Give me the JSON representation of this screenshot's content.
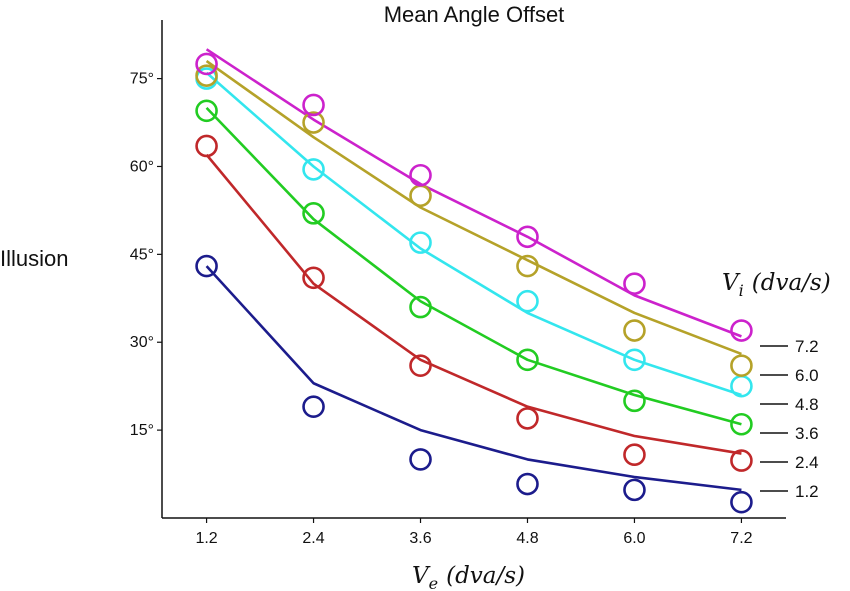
{
  "chart_data": {
    "type": "line",
    "title": "Mean Angle Offset",
    "ylabel": "Illusion",
    "xlabel": {
      "var": "V",
      "sub": "e",
      "unit": "(dva/s)"
    },
    "legend_title": {
      "var": "V",
      "sub": "i",
      "unit": "(dva/s)"
    },
    "x": [
      1.2,
      2.4,
      3.6,
      4.8,
      6.0,
      7.2
    ],
    "x_tick_labels": [
      "1.2",
      "2.4",
      "3.6",
      "4.8",
      "6.0",
      "7.2"
    ],
    "y_ticks": [
      15,
      30,
      45,
      60,
      75
    ],
    "y_tick_labels": [
      "15°",
      "30°",
      "45°",
      "60°",
      "75°"
    ],
    "ylim": [
      0,
      85
    ],
    "xlim": [
      0.7,
      7.7
    ],
    "grid": false,
    "legend_position": "right",
    "series": [
      {
        "name": "1.2",
        "color": "#1c1c8c",
        "points": [
          43,
          19,
          10,
          5.8,
          4.8,
          2.7
        ],
        "fit": [
          43,
          23,
          15,
          10,
          7,
          4.8
        ]
      },
      {
        "name": "2.4",
        "color": "#c0282a",
        "points": [
          63.5,
          41,
          26,
          17,
          10.8,
          9.8
        ],
        "fit": [
          62,
          40,
          27,
          19,
          14,
          11
        ]
      },
      {
        "name": "3.6",
        "color": "#22cc22",
        "points": [
          69.5,
          52,
          36,
          27,
          20,
          16
        ],
        "fit": [
          70,
          51,
          37,
          27,
          21,
          16
        ]
      },
      {
        "name": "4.8",
        "color": "#33e6ee",
        "points": [
          75,
          59.5,
          47,
          37,
          27,
          22.5
        ],
        "fit": [
          76,
          60,
          46,
          35,
          27,
          21
        ]
      },
      {
        "name": "6.0",
        "color": "#b5a229",
        "points": [
          75.5,
          67.5,
          55,
          43,
          32,
          26
        ],
        "fit": [
          78,
          65,
          53,
          44,
          35,
          28
        ]
      },
      {
        "name": "7.2",
        "color": "#cc22cc",
        "points": [
          77.5,
          70.5,
          58.5,
          48,
          40,
          32
        ],
        "fit": [
          80,
          68,
          57,
          48,
          38,
          31
        ]
      }
    ]
  }
}
